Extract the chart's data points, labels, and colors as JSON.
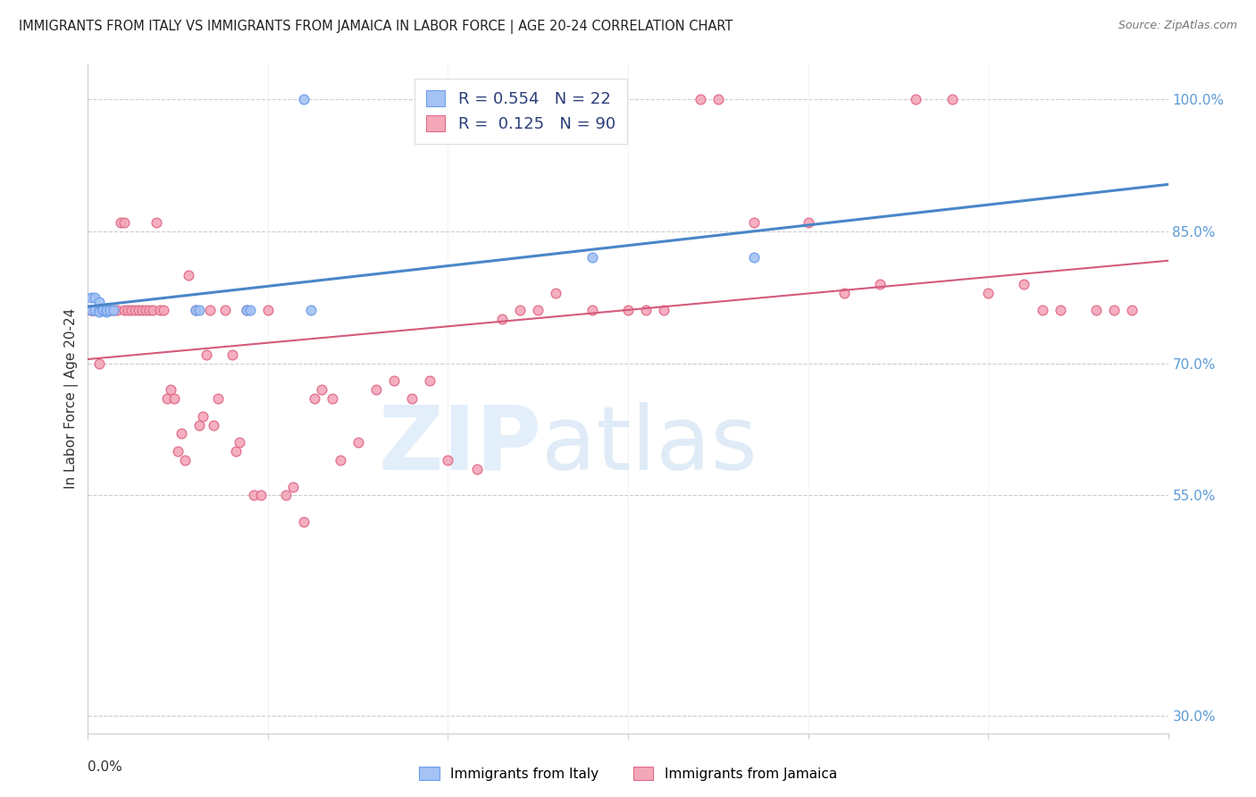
{
  "title": "IMMIGRANTS FROM ITALY VS IMMIGRANTS FROM JAMAICA IN LABOR FORCE | AGE 20-24 CORRELATION CHART",
  "source": "Source: ZipAtlas.com",
  "ylabel": "In Labor Force | Age 20-24",
  "ytick_labels": [
    "100.0%",
    "85.0%",
    "70.0%",
    "55.0%",
    "30.0%"
  ],
  "ytick_values": [
    1.0,
    0.85,
    0.7,
    0.55,
    0.3
  ],
  "xmin": 0.0,
  "xmax": 0.3,
  "ymin": 0.28,
  "ymax": 1.04,
  "legend_italy_R": "0.554",
  "legend_italy_N": "22",
  "legend_jamaica_R": "0.125",
  "legend_jamaica_N": "90",
  "italy_color": "#a4c2f4",
  "jamaica_color": "#f4a7b9",
  "italy_edge_color": "#6d9eeb",
  "jamaica_edge_color": "#e06c8a",
  "italy_line_color": "#4a86c8",
  "jamaica_line_color": "#d45a7a",
  "scatter_size": 60,
  "italy_points_x": [
    0.001,
    0.001,
    0.002,
    0.002,
    0.003,
    0.003,
    0.003,
    0.004,
    0.004,
    0.005,
    0.005,
    0.005,
    0.006,
    0.007,
    0.03,
    0.031,
    0.044,
    0.045,
    0.06,
    0.062,
    0.14,
    0.185
  ],
  "italy_points_y": [
    0.76,
    0.775,
    0.76,
    0.775,
    0.76,
    0.77,
    0.758,
    0.76,
    0.76,
    0.76,
    0.758,
    0.76,
    0.76,
    0.76,
    0.76,
    0.76,
    0.76,
    0.76,
    1.0,
    0.76,
    0.82,
    0.82
  ],
  "jamaica_points_x": [
    0.001,
    0.001,
    0.001,
    0.002,
    0.002,
    0.002,
    0.003,
    0.003,
    0.003,
    0.004,
    0.004,
    0.005,
    0.005,
    0.006,
    0.006,
    0.007,
    0.008,
    0.009,
    0.01,
    0.01,
    0.011,
    0.012,
    0.013,
    0.014,
    0.015,
    0.016,
    0.017,
    0.018,
    0.019,
    0.02,
    0.021,
    0.022,
    0.023,
    0.024,
    0.025,
    0.026,
    0.027,
    0.028,
    0.03,
    0.031,
    0.032,
    0.033,
    0.034,
    0.035,
    0.036,
    0.038,
    0.04,
    0.041,
    0.042,
    0.044,
    0.046,
    0.048,
    0.05,
    0.055,
    0.057,
    0.06,
    0.063,
    0.065,
    0.068,
    0.07,
    0.075,
    0.08,
    0.085,
    0.09,
    0.095,
    0.1,
    0.108,
    0.115,
    0.12,
    0.125,
    0.13,
    0.14,
    0.15,
    0.155,
    0.16,
    0.17,
    0.175,
    0.185,
    0.2,
    0.21,
    0.22,
    0.23,
    0.24,
    0.25,
    0.26,
    0.265,
    0.27,
    0.28,
    0.285,
    0.29
  ],
  "jamaica_points_y": [
    0.76,
    0.76,
    0.76,
    0.76,
    0.76,
    0.76,
    0.76,
    0.76,
    0.7,
    0.76,
    0.76,
    0.76,
    0.76,
    0.76,
    0.76,
    0.76,
    0.76,
    0.86,
    0.76,
    0.86,
    0.76,
    0.76,
    0.76,
    0.76,
    0.76,
    0.76,
    0.76,
    0.76,
    0.86,
    0.76,
    0.76,
    0.66,
    0.67,
    0.66,
    0.6,
    0.62,
    0.59,
    0.8,
    0.76,
    0.63,
    0.64,
    0.71,
    0.76,
    0.63,
    0.66,
    0.76,
    0.71,
    0.6,
    0.61,
    0.76,
    0.55,
    0.55,
    0.76,
    0.55,
    0.56,
    0.52,
    0.66,
    0.67,
    0.66,
    0.59,
    0.61,
    0.67,
    0.68,
    0.66,
    0.68,
    0.59,
    0.58,
    0.75,
    0.76,
    0.76,
    0.78,
    0.76,
    0.76,
    0.76,
    0.76,
    1.0,
    1.0,
    0.86,
    0.86,
    0.78,
    0.79,
    1.0,
    1.0,
    0.78,
    0.79,
    0.76,
    0.76,
    0.76,
    0.76,
    0.76
  ]
}
